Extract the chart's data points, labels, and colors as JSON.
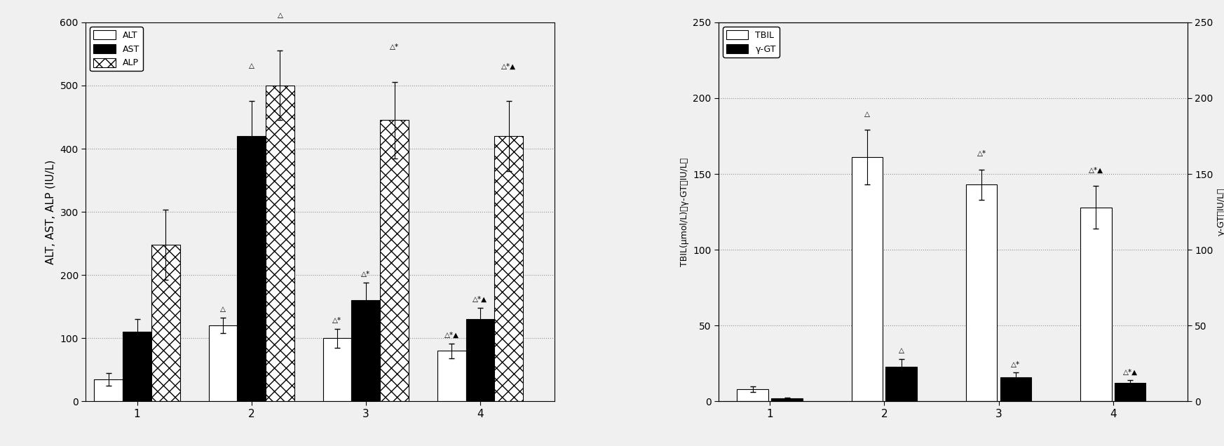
{
  "left": {
    "ylabel": "ALT, AST, ALP (IU/L)",
    "ylim": [
      0,
      600
    ],
    "yticks": [
      0,
      100,
      200,
      300,
      400,
      500,
      600
    ],
    "xticks": [
      1,
      2,
      3,
      4
    ],
    "groups": [
      1,
      2,
      3,
      4
    ],
    "ALT_vals": [
      35,
      120,
      100,
      80
    ],
    "ALT_err": [
      10,
      12,
      15,
      12
    ],
    "AST_vals": [
      110,
      420,
      160,
      130
    ],
    "AST_err": [
      20,
      55,
      28,
      18
    ],
    "ALP_vals": [
      248,
      500,
      445,
      420
    ],
    "ALP_err": [
      55,
      55,
      60,
      55
    ],
    "legend_labels": [
      "ALT",
      "AST",
      "ALP"
    ]
  },
  "right": {
    "ylabel": "TBIL (μmol/L)、γ-GT（IU/L）",
    "ylabel_left1": "TBIL(μmol/L)",
    "ylabel_left2": "γ-GT（IU/L）",
    "ylim": [
      0,
      250
    ],
    "yticks": [
      0,
      50,
      100,
      150,
      200,
      250
    ],
    "xticks": [
      1,
      2,
      3,
      4
    ],
    "groups": [
      1,
      2,
      3,
      4
    ],
    "TBIL_vals": [
      8,
      161,
      143,
      128
    ],
    "TBIL_err": [
      2,
      18,
      10,
      14
    ],
    "GGT_vals": [
      2,
      23,
      16,
      12
    ],
    "GGT_err": [
      0.5,
      5,
      3,
      2
    ],
    "legend_labels": [
      "TBIL",
      "γ-GT"
    ]
  },
  "annotation_fontsize": 7.5,
  "bar_width": 0.25,
  "background_color": "#f0f0f0",
  "grid_color": "#888888",
  "grid_style": ":",
  "grid_alpha": 0.9
}
